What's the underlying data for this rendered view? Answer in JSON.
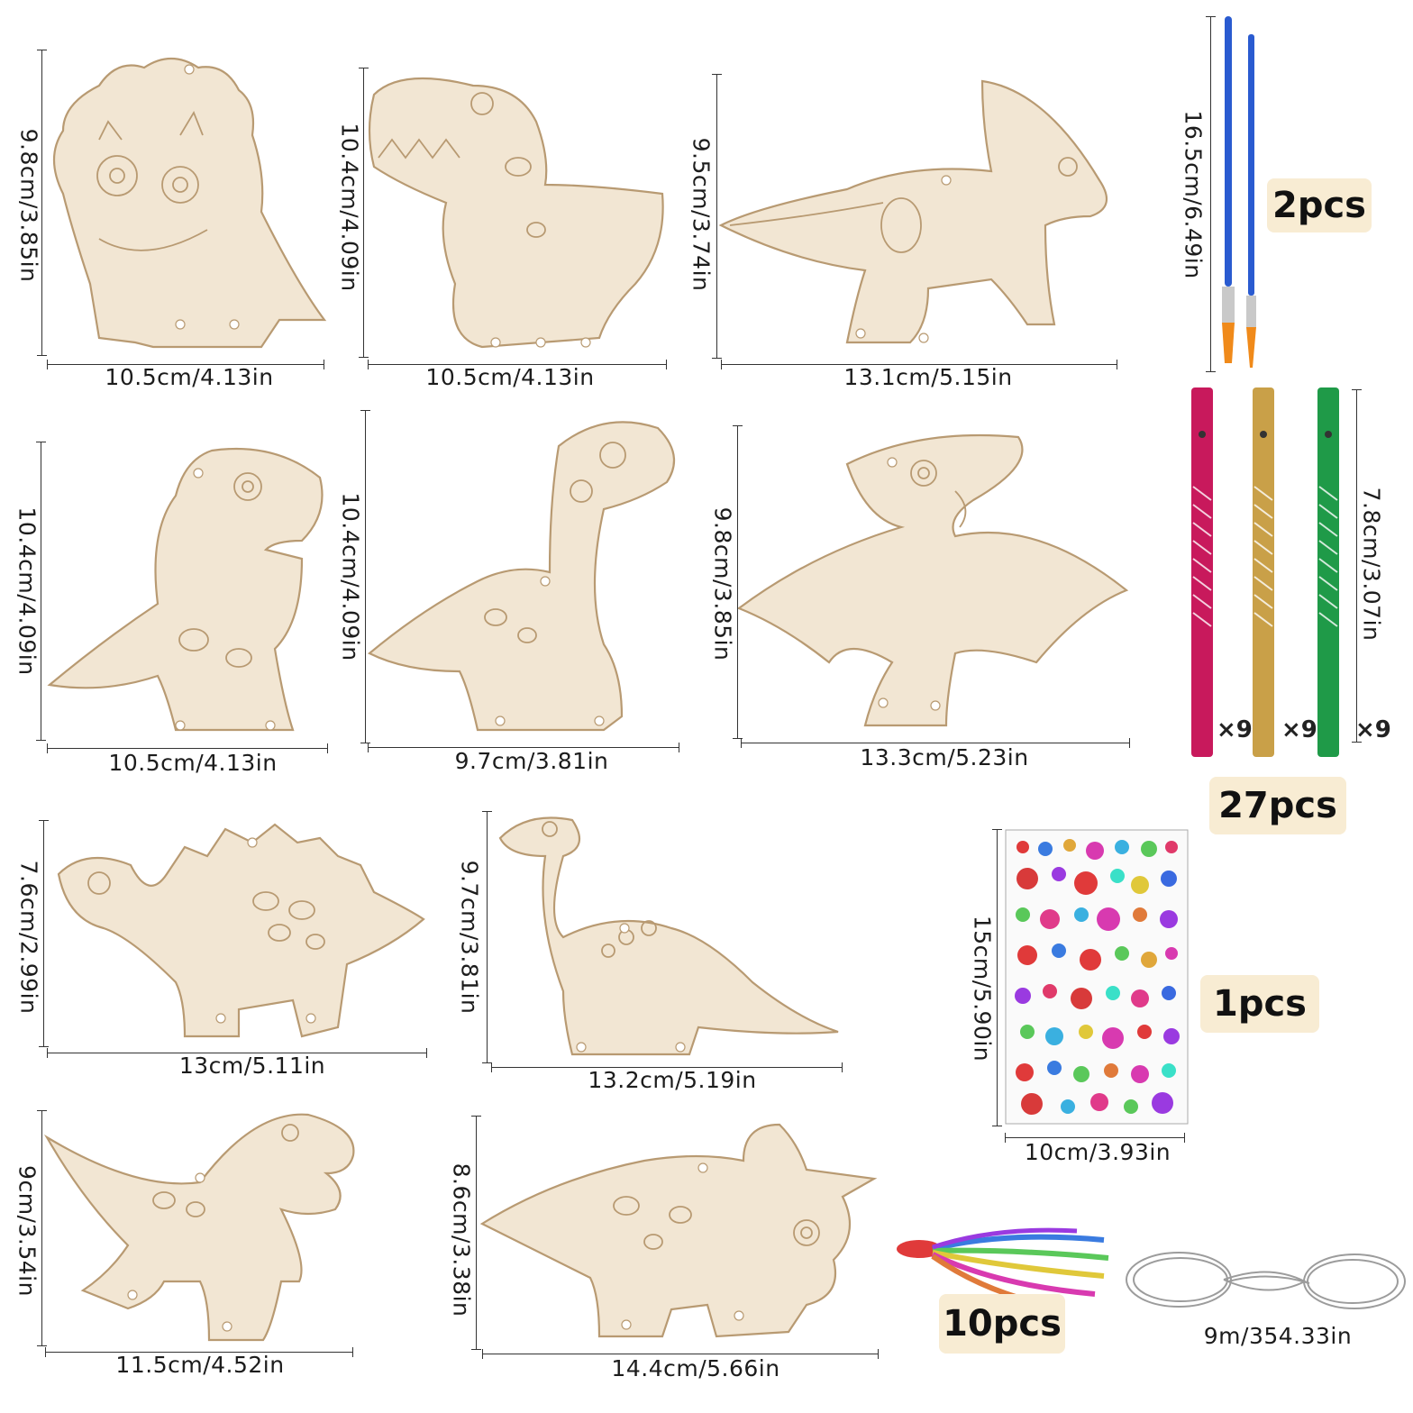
{
  "pieces": [
    {
      "name": "triceratops-baby",
      "width_label": "10.5cm/4.13in",
      "height_label": "9.8cm/3.85in"
    },
    {
      "name": "trex-small",
      "width_label": "10.5cm/4.13in",
      "height_label": "10.4cm/4.09in"
    },
    {
      "name": "parasaurolophus",
      "width_label": "13.1cm/5.15in",
      "height_label": "9.5cm/3.74in"
    },
    {
      "name": "trex-standing",
      "width_label": "10.5cm/4.13in",
      "height_label": "10.4cm/4.09in"
    },
    {
      "name": "longneck",
      "width_label": "9.7cm/3.81in",
      "height_label": "10.4cm/4.09in"
    },
    {
      "name": "pterodactyl",
      "width_label": "13.3cm/5.23in",
      "height_label": "9.8cm/3.85in"
    },
    {
      "name": "stegosaurus",
      "width_label": "13cm/5.11in",
      "height_label": "7.6cm/2.99in"
    },
    {
      "name": "brachiosaurus",
      "width_label": "13.2cm/5.19in",
      "height_label": "9.7cm/3.81in"
    },
    {
      "name": "trex-roaring",
      "width_label": "11.5cm/4.52in",
      "height_label": "9cm/3.54in"
    },
    {
      "name": "triceratops",
      "width_label": "14.4cm/5.66in",
      "height_label": "8.6cm/3.38in"
    }
  ],
  "brushes": {
    "height_label": "16.5cm/6.49in",
    "badge": "2pcs"
  },
  "chimes": {
    "height_label": "7.8cm/3.07in",
    "multipliers": [
      "×9",
      "×9",
      "×9"
    ],
    "colors": [
      "#c8195c",
      "#c9a048",
      "#1f9a48"
    ],
    "badge": "27pcs"
  },
  "stickers": {
    "height_label": "15cm/5.90in",
    "width_label": "10cm/3.93in",
    "badge": "1pcs"
  },
  "ribbons": {
    "badge": "10pcs"
  },
  "cord": {
    "length_label": "9m/354.33in"
  }
}
